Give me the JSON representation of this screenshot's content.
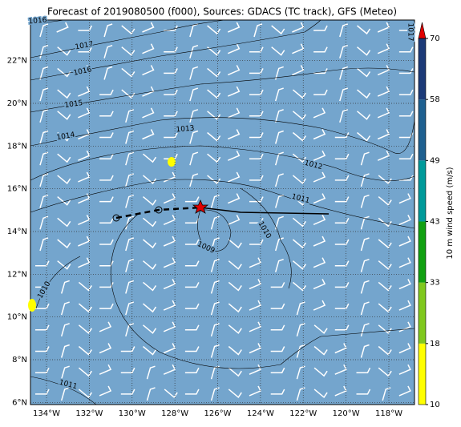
{
  "map": {
    "title": "Forecast of 2019080500 (f000), Sources: GDACS (TC track), GFS (Meteo)",
    "lon_extent": [
      -134.75,
      -116.8
    ],
    "lat_extent": [
      5.9,
      23.9
    ],
    "lon_ticks": [
      {
        "value": -134,
        "label": "134°W"
      },
      {
        "value": -132,
        "label": "132°W"
      },
      {
        "value": -130,
        "label": "130°W"
      },
      {
        "value": -128,
        "label": "128°W"
      },
      {
        "value": -126,
        "label": "126°W"
      },
      {
        "value": -124,
        "label": "124°W"
      },
      {
        "value": -122,
        "label": "122°W"
      },
      {
        "value": -120,
        "label": "120°W"
      },
      {
        "value": -118,
        "label": "118°W"
      }
    ],
    "lat_ticks": [
      {
        "value": 6,
        "label": "6°N"
      },
      {
        "value": 8,
        "label": "8°N"
      },
      {
        "value": 10,
        "label": "10°N"
      },
      {
        "value": 12,
        "label": "12°N"
      },
      {
        "value": 14,
        "label": "14°N"
      },
      {
        "value": 16,
        "label": "16°N"
      },
      {
        "value": 18,
        "label": "18°N"
      },
      {
        "value": 20,
        "label": "20°N"
      },
      {
        "value": 22,
        "label": "22°N"
      }
    ],
    "contour_labels": [
      "1016",
      "1017",
      "1016",
      "1015",
      "1014",
      "1013",
      "1012",
      "1011",
      "1010",
      "1009",
      "1010",
      "1011",
      "1017"
    ],
    "colorbar": {
      "label": "10 m wind speed (m/s)",
      "ticks": [
        10,
        18,
        33,
        43,
        49,
        58,
        70
      ],
      "colors": [
        "#ffff00",
        "#80c81e",
        "#12a012",
        "#009a9a",
        "#1e6090",
        "#1c3a78"
      ],
      "extend_color": "#e00000"
    }
  }
}
